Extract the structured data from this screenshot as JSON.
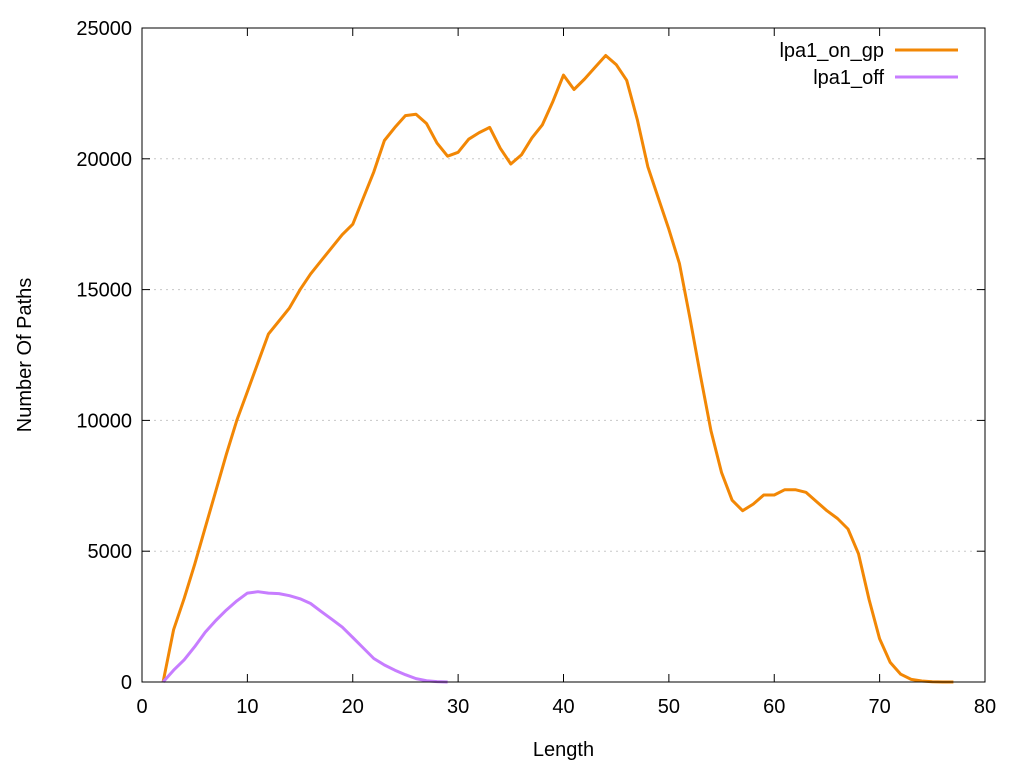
{
  "chart_data": {
    "type": "line",
    "title": "",
    "xlabel": "Length",
    "ylabel": "Number Of Paths",
    "xlim": [
      0,
      80
    ],
    "ylim": [
      0,
      25000
    ],
    "xticks": [
      0,
      10,
      20,
      30,
      40,
      50,
      60,
      70,
      80
    ],
    "yticks": [
      0,
      5000,
      10000,
      15000,
      20000,
      25000
    ],
    "grid": {
      "horizontal": true,
      "vertical": false,
      "style": "dotted"
    },
    "legend_position": "top-right",
    "series": [
      {
        "name": "lpa1_on_gp",
        "color": "#f28705",
        "points": [
          [
            2,
            0
          ],
          [
            3,
            2000
          ],
          [
            4,
            3200
          ],
          [
            5,
            4500
          ],
          [
            6,
            5900
          ],
          [
            7,
            7300
          ],
          [
            8,
            8700
          ],
          [
            9,
            10000
          ],
          [
            10,
            11100
          ],
          [
            11,
            12200
          ],
          [
            12,
            13300
          ],
          [
            13,
            13800
          ],
          [
            14,
            14300
          ],
          [
            15,
            15000
          ],
          [
            16,
            15600
          ],
          [
            17,
            16100
          ],
          [
            18,
            16600
          ],
          [
            19,
            17100
          ],
          [
            20,
            17500
          ],
          [
            21,
            18500
          ],
          [
            22,
            19500
          ],
          [
            23,
            20700
          ],
          [
            24,
            21200
          ],
          [
            25,
            21650
          ],
          [
            26,
            21700
          ],
          [
            27,
            21350
          ],
          [
            28,
            20600
          ],
          [
            29,
            20100
          ],
          [
            30,
            20250
          ],
          [
            31,
            20750
          ],
          [
            32,
            21000
          ],
          [
            33,
            21200
          ],
          [
            34,
            20400
          ],
          [
            35,
            19800
          ],
          [
            36,
            20150
          ],
          [
            37,
            20800
          ],
          [
            38,
            21300
          ],
          [
            39,
            22200
          ],
          [
            40,
            23200
          ],
          [
            41,
            22650
          ],
          [
            42,
            23050
          ],
          [
            43,
            23500
          ],
          [
            44,
            23950
          ],
          [
            45,
            23600
          ],
          [
            46,
            23000
          ],
          [
            47,
            21500
          ],
          [
            48,
            19700
          ],
          [
            49,
            18500
          ],
          [
            50,
            17300
          ],
          [
            51,
            16000
          ],
          [
            52,
            13900
          ],
          [
            53,
            11700
          ],
          [
            54,
            9600
          ],
          [
            55,
            8000
          ],
          [
            56,
            6950
          ],
          [
            57,
            6550
          ],
          [
            58,
            6800
          ],
          [
            59,
            7150
          ],
          [
            60,
            7150
          ],
          [
            61,
            7350
          ],
          [
            62,
            7350
          ],
          [
            63,
            7250
          ],
          [
            64,
            6900
          ],
          [
            65,
            6550
          ],
          [
            66,
            6250
          ],
          [
            67,
            5850
          ],
          [
            68,
            4900
          ],
          [
            69,
            3150
          ],
          [
            70,
            1650
          ],
          [
            71,
            750
          ],
          [
            72,
            300
          ],
          [
            73,
            100
          ],
          [
            74,
            40
          ],
          [
            75,
            10
          ],
          [
            76,
            0
          ],
          [
            77,
            0
          ]
        ]
      },
      {
        "name": "lpa1_off",
        "color": "#c77dff",
        "points": [
          [
            2,
            0
          ],
          [
            3,
            450
          ],
          [
            4,
            850
          ],
          [
            5,
            1350
          ],
          [
            6,
            1900
          ],
          [
            7,
            2350
          ],
          [
            8,
            2750
          ],
          [
            9,
            3100
          ],
          [
            10,
            3400
          ],
          [
            11,
            3450
          ],
          [
            12,
            3400
          ],
          [
            13,
            3380
          ],
          [
            14,
            3300
          ],
          [
            15,
            3180
          ],
          [
            16,
            3000
          ],
          [
            17,
            2700
          ],
          [
            18,
            2400
          ],
          [
            19,
            2100
          ],
          [
            20,
            1700
          ],
          [
            21,
            1300
          ],
          [
            22,
            900
          ],
          [
            23,
            650
          ],
          [
            24,
            450
          ],
          [
            25,
            280
          ],
          [
            26,
            130
          ],
          [
            27,
            50
          ],
          [
            28,
            15
          ],
          [
            29,
            0
          ]
        ]
      }
    ]
  }
}
